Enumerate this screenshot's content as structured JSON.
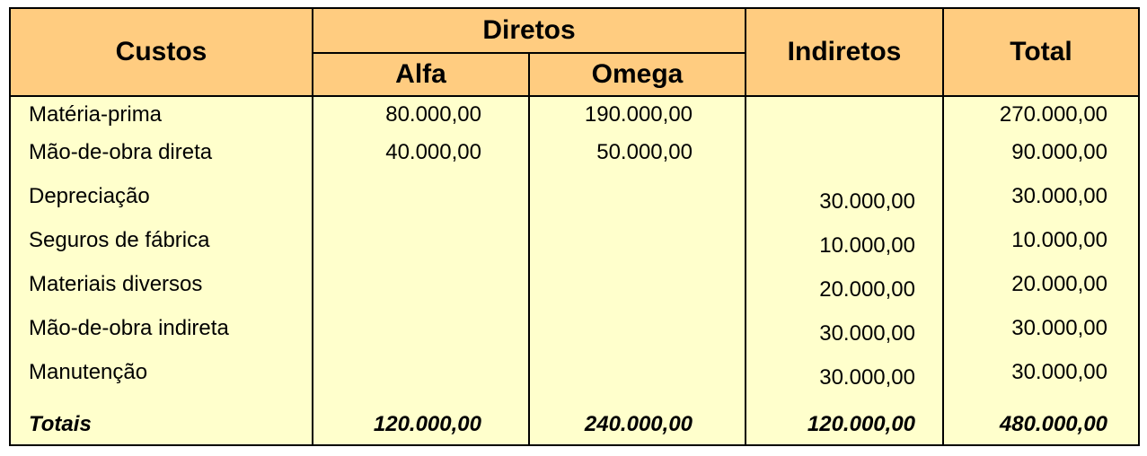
{
  "header": {
    "custos": "Custos",
    "diretos": "Diretos",
    "alfa": "Alfa",
    "omega": "Omega",
    "indiretos": "Indiretos",
    "total": "Total"
  },
  "rows": [
    {
      "label": "Matéria-prima",
      "alfa": "80.000,00",
      "omega": "190.000,00",
      "indiretos": "",
      "total": "270.000,00"
    },
    {
      "label": "Mão-de-obra direta",
      "alfa": "40.000,00",
      "omega": "50.000,00",
      "indiretos": "",
      "total": "90.000,00"
    },
    {
      "label": "Depreciação",
      "alfa": "",
      "omega": "",
      "indiretos": "30.000,00",
      "total": "30.000,00"
    },
    {
      "label": "Seguros de fábrica",
      "alfa": "",
      "omega": "",
      "indiretos": "10.000,00",
      "total": "10.000,00"
    },
    {
      "label": "Materiais diversos",
      "alfa": "",
      "omega": "",
      "indiretos": "20.000,00",
      "total": "20.000,00"
    },
    {
      "label": "Mão-de-obra indireta",
      "alfa": "",
      "omega": "",
      "indiretos": "30.000,00",
      "total": "30.000,00"
    },
    {
      "label": "Manutenção",
      "alfa": "",
      "omega": "",
      "indiretos": "30.000,00",
      "total": "30.000,00"
    }
  ],
  "totals": {
    "label": "Totais",
    "alfa": "120.000,00",
    "omega": "240.000,00",
    "indiretos": "120.000,00",
    "total": "480.000,00"
  },
  "colors": {
    "header_bg": "#ffcc80",
    "body_bg": "#ffffcc",
    "border": "#000000"
  }
}
